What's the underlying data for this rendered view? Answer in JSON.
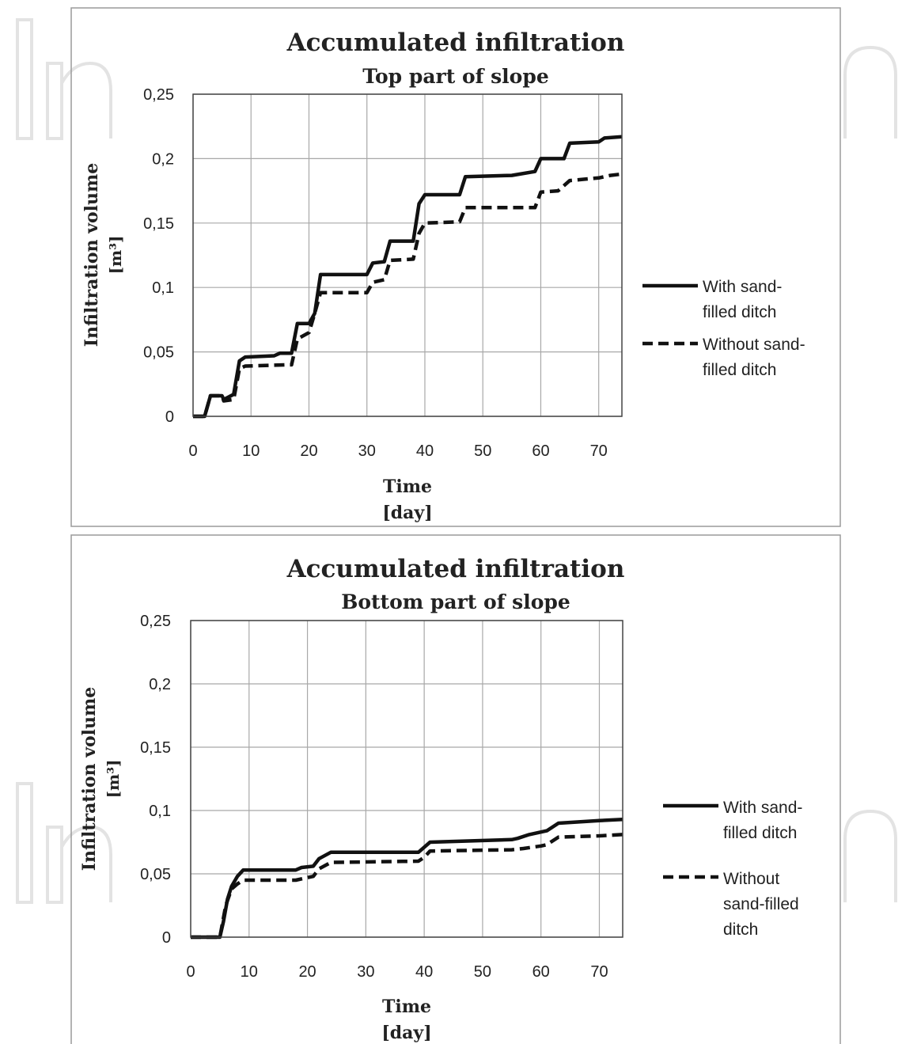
{
  "charts": [
    {
      "title": "Accumulated infiltration",
      "subtitle": "Top part of slope",
      "xlabel": "Time",
      "xunit": "[day]",
      "ylabel": "Infiltration volume",
      "yunit": "[m³]",
      "legend": [
        {
          "lines": [
            "With sand-",
            "filled ditch"
          ],
          "style": "solid"
        },
        {
          "lines": [
            "Without sand-",
            "filled ditch"
          ],
          "style": "dashed"
        }
      ]
    },
    {
      "title": "Accumulated infiltration",
      "subtitle": "Bottom part of slope",
      "xlabel": "Time",
      "xunit": "[day]",
      "ylabel": "Infiltration volume",
      "yunit": "[m³]",
      "legend": [
        {
          "lines": [
            "With sand-",
            "filled ditch"
          ],
          "style": "solid"
        },
        {
          "lines": [
            "Without",
            "sand-filled",
            "ditch"
          ],
          "style": "dashed"
        }
      ]
    }
  ],
  "chart_data": [
    {
      "type": "line",
      "title": "Accumulated infiltration",
      "subtitle": "Top part of slope",
      "xlabel": "Time [day]",
      "ylabel": "Infiltration volume [m³]",
      "xlim": [
        0,
        74
      ],
      "ylim": [
        0,
        0.25
      ],
      "x_ticks": [
        0,
        10,
        20,
        30,
        40,
        50,
        60,
        70
      ],
      "x_tick_labels": [
        "0",
        "10",
        "20",
        "30",
        "40",
        "50",
        "60",
        "70"
      ],
      "y_ticks": [
        0,
        0.05,
        0.1,
        0.15,
        0.2,
        0.25
      ],
      "y_tick_labels": [
        "0",
        "0,05",
        "0,1",
        "0,15",
        "0,2",
        "0,25"
      ],
      "grid": true,
      "legend_position": "right",
      "series": [
        {
          "name": "With sand-filled ditch",
          "style": "solid",
          "color": "#111111",
          "points": [
            [
              0,
              0
            ],
            [
              2,
              0
            ],
            [
              3,
              0.016
            ],
            [
              5,
              0.016
            ],
            [
              5.3,
              0.013
            ],
            [
              7,
              0.017
            ],
            [
              8,
              0.043
            ],
            [
              9,
              0.046
            ],
            [
              14,
              0.047
            ],
            [
              15,
              0.049
            ],
            [
              17,
              0.049
            ],
            [
              18,
              0.072
            ],
            [
              20,
              0.072
            ],
            [
              21,
              0.08
            ],
            [
              22,
              0.11
            ],
            [
              30,
              0.11
            ],
            [
              31,
              0.119
            ],
            [
              33,
              0.12
            ],
            [
              34,
              0.136
            ],
            [
              38,
              0.136
            ],
            [
              39,
              0.165
            ],
            [
              40,
              0.172
            ],
            [
              46,
              0.172
            ],
            [
              47,
              0.186
            ],
            [
              55,
              0.187
            ],
            [
              59,
              0.19
            ],
            [
              60,
              0.2
            ],
            [
              64,
              0.2
            ],
            [
              65,
              0.212
            ],
            [
              70,
              0.213
            ],
            [
              71,
              0.216
            ],
            [
              74,
              0.217
            ]
          ]
        },
        {
          "name": "Without sand-filled ditch",
          "style": "dashed",
          "color": "#111111",
          "points": [
            [
              0,
              0
            ],
            [
              2,
              0
            ],
            [
              3,
              0.016
            ],
            [
              5,
              0.016
            ],
            [
              5.3,
              0.012
            ],
            [
              7,
              0.013
            ],
            [
              8,
              0.037
            ],
            [
              9,
              0.039
            ],
            [
              16,
              0.04
            ],
            [
              17,
              0.04
            ],
            [
              18,
              0.06
            ],
            [
              20,
              0.065
            ],
            [
              21,
              0.08
            ],
            [
              22,
              0.096
            ],
            [
              30,
              0.096
            ],
            [
              31,
              0.104
            ],
            [
              33,
              0.106
            ],
            [
              34,
              0.121
            ],
            [
              38,
              0.122
            ],
            [
              39,
              0.142
            ],
            [
              40,
              0.15
            ],
            [
              46,
              0.151
            ],
            [
              47,
              0.162
            ],
            [
              59,
              0.162
            ],
            [
              60,
              0.174
            ],
            [
              63,
              0.175
            ],
            [
              65,
              0.183
            ],
            [
              70,
              0.185
            ],
            [
              72,
              0.187
            ],
            [
              74,
              0.188
            ]
          ]
        }
      ]
    },
    {
      "type": "line",
      "title": "Accumulated infiltration",
      "subtitle": "Bottom part of slope",
      "xlabel": "Time [day]",
      "ylabel": "Infiltration volume [m³]",
      "xlim": [
        0,
        74
      ],
      "ylim": [
        0,
        0.25
      ],
      "x_ticks": [
        0,
        10,
        20,
        30,
        40,
        50,
        60,
        70
      ],
      "x_tick_labels": [
        "0",
        "10",
        "20",
        "30",
        "40",
        "50",
        "60",
        "70"
      ],
      "y_ticks": [
        0,
        0.05,
        0.1,
        0.15,
        0.2,
        0.25
      ],
      "y_tick_labels": [
        "0",
        "0,05",
        "0,1",
        "0,15",
        "0,2",
        "0,25"
      ],
      "grid": true,
      "legend_position": "right",
      "series": [
        {
          "name": "With sand-filled ditch",
          "style": "solid",
          "color": "#111111",
          "points": [
            [
              0,
              0
            ],
            [
              5,
              0
            ],
            [
              5.6,
              0.012
            ],
            [
              6.3,
              0.03
            ],
            [
              7,
              0.04
            ],
            [
              8,
              0.048
            ],
            [
              9,
              0.053
            ],
            [
              18,
              0.053
            ],
            [
              19,
              0.055
            ],
            [
              21,
              0.056
            ],
            [
              22,
              0.062
            ],
            [
              24,
              0.067
            ],
            [
              39,
              0.067
            ],
            [
              40,
              0.071
            ],
            [
              41,
              0.075
            ],
            [
              55,
              0.077
            ],
            [
              56,
              0.078
            ],
            [
              58,
              0.081
            ],
            [
              61,
              0.084
            ],
            [
              63,
              0.09
            ],
            [
              70,
              0.092
            ],
            [
              74,
              0.093
            ]
          ]
        },
        {
          "name": "Without sand-filled ditch",
          "style": "dashed",
          "color": "#111111",
          "points": [
            [
              0,
              0
            ],
            [
              5,
              0
            ],
            [
              6,
              0.025
            ],
            [
              7,
              0.038
            ],
            [
              8,
              0.042
            ],
            [
              9,
              0.045
            ],
            [
              18,
              0.045
            ],
            [
              21,
              0.048
            ],
            [
              22,
              0.054
            ],
            [
              24,
              0.059
            ],
            [
              39,
              0.06
            ],
            [
              40,
              0.063
            ],
            [
              41,
              0.068
            ],
            [
              55,
              0.069
            ],
            [
              57,
              0.07
            ],
            [
              60,
              0.072
            ],
            [
              61,
              0.073
            ],
            [
              63,
              0.079
            ],
            [
              70,
              0.08
            ],
            [
              74,
              0.081
            ]
          ]
        }
      ]
    }
  ]
}
